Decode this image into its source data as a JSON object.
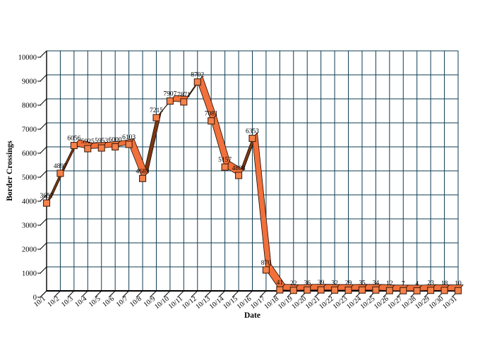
{
  "chart_data": {
    "type": "line",
    "style": "3d-ribbon",
    "title": "",
    "xlabel": "Date",
    "ylabel": "Border Crossings",
    "categories": [
      "10/1",
      "10/2",
      "10/3",
      "10/4",
      "10/5",
      "10/6",
      "10/7",
      "10/8",
      "10/9",
      "10/10",
      "10/11",
      "10/12",
      "10/13",
      "10/14",
      "10/15",
      "10/16",
      "10/17",
      "10/18",
      "10/19",
      "10/20",
      "10/21",
      "10/22",
      "10/23",
      "10/24",
      "10/25",
      "10/26",
      "10/27",
      "10/28",
      "10/29",
      "10/30",
      "10/31"
    ],
    "values": [
      3657,
      4897,
      6056,
      5925,
      5953,
      6000,
      6103,
      4683,
      7215,
      7907,
      7871,
      8702,
      7081,
      5157,
      4808,
      6353,
      870,
      41,
      22,
      36,
      39,
      32,
      29,
      35,
      34,
      12,
      7,
      4,
      23,
      18,
      10
    ],
    "data_labels_visible": true,
    "ylim": [
      0,
      10000
    ],
    "ytick_step": 1000,
    "grid": true,
    "legend": "none",
    "colors": {
      "ribbon_face": "#F1703B",
      "ribbon_side": "#7B3911",
      "ribbon_outline": "#1c0d05",
      "marker_fill": "#F5824B",
      "marker_border": "#46200d",
      "gridline": "#0e3c52",
      "axis": "#000000",
      "text": "#000000"
    }
  }
}
